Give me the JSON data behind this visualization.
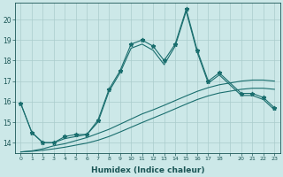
{
  "xlabel": "Humidex (Indice chaleur)",
  "ylabel": "",
  "background_color": "#cce8e8",
  "grid_color": "#aacccc",
  "line_color": "#1a6e6e",
  "xlim": [
    -0.5,
    23.5
  ],
  "ylim": [
    13.5,
    20.8
  ],
  "xtick_labels": [
    "0",
    "1",
    "2",
    "3",
    "4",
    "5",
    "6",
    "7",
    "8",
    "9",
    "10",
    "11",
    "12",
    "13",
    "14",
    "15",
    "16",
    "17",
    "18",
    "",
    "20",
    "21",
    "22",
    "23"
  ],
  "yticks": [
    14,
    15,
    16,
    17,
    18,
    19,
    20
  ],
  "series": [
    {
      "x": [
        0,
        1,
        2,
        3,
        4,
        5,
        6,
        7,
        8,
        9,
        10,
        11,
        12,
        13,
        14,
        15,
        16,
        17,
        18,
        20,
        21,
        22,
        23
      ],
      "y": [
        15.9,
        14.5,
        14.0,
        14.0,
        14.3,
        14.4,
        14.4,
        15.1,
        16.6,
        17.5,
        18.8,
        19.0,
        18.7,
        18.0,
        18.8,
        20.5,
        18.5,
        17.0,
        17.4,
        16.4,
        16.4,
        16.2,
        15.7
      ],
      "marker": "*",
      "markersize": 3.5,
      "linewidth": 0.8
    },
    {
      "x": [
        0,
        1,
        2,
        3,
        4,
        5,
        6,
        7,
        8,
        9,
        10,
        11,
        12,
        13,
        14,
        15,
        16,
        17,
        18,
        20,
        21,
        22,
        23
      ],
      "y": [
        15.9,
        14.5,
        14.0,
        14.0,
        14.2,
        14.3,
        14.4,
        15.0,
        16.5,
        17.4,
        18.6,
        18.8,
        18.5,
        17.8,
        18.7,
        20.4,
        18.4,
        16.9,
        17.3,
        16.3,
        16.3,
        16.1,
        15.6
      ],
      "marker": null,
      "markersize": 0,
      "linewidth": 0.8
    },
    {
      "x": [
        0,
        1,
        2,
        3,
        4,
        5,
        6,
        7,
        8,
        9,
        10,
        11,
        12,
        13,
        14,
        15,
        16,
        17,
        18,
        20,
        21,
        22,
        23
      ],
      "y": [
        13.55,
        13.6,
        13.7,
        13.85,
        13.95,
        14.1,
        14.25,
        14.45,
        14.65,
        14.9,
        15.15,
        15.4,
        15.6,
        15.82,
        16.05,
        16.28,
        16.5,
        16.68,
        16.82,
        17.0,
        17.05,
        17.05,
        17.0
      ],
      "marker": null,
      "markersize": 0,
      "linewidth": 0.8
    },
    {
      "x": [
        0,
        1,
        2,
        3,
        4,
        5,
        6,
        7,
        8,
        9,
        10,
        11,
        12,
        13,
        14,
        15,
        16,
        17,
        18,
        20,
        21,
        22,
        23
      ],
      "y": [
        13.55,
        13.58,
        13.63,
        13.7,
        13.78,
        13.88,
        13.98,
        14.12,
        14.3,
        14.52,
        14.75,
        14.98,
        15.2,
        15.42,
        15.65,
        15.88,
        16.1,
        16.28,
        16.42,
        16.6,
        16.65,
        16.65,
        16.6
      ],
      "marker": null,
      "markersize": 0,
      "linewidth": 0.8
    }
  ]
}
